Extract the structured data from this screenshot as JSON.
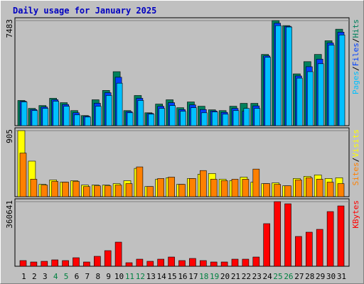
{
  "chart_data": [
    {
      "type": "bar",
      "title": "Daily usage for January 2025",
      "legend_separator": "/",
      "ylim": [
        0,
        7483
      ],
      "yticks": [
        7483
      ],
      "series": [
        {
          "name": "Hits",
          "color": "#00805c",
          "values": [
            1795,
            1230,
            1435,
            1950,
            1640,
            1075,
            720,
            1845,
            2510,
            3845,
            1075,
            2150,
            920,
            1540,
            1845,
            1280,
            1690,
            1385,
            1130,
            1075,
            1385,
            1590,
            1590,
            5075,
            7483,
            7125,
            3690,
            4560,
            5075,
            6050,
            6870
          ]
        },
        {
          "name": "Files",
          "color": "#0040ff",
          "values": [
            1740,
            1150,
            1330,
            1850,
            1510,
            920,
            670,
            1600,
            2350,
            3450,
            1000,
            1950,
            870,
            1380,
            1640,
            1150,
            1480,
            1150,
            1050,
            950,
            1230,
            1030,
            1410,
            4970,
            7300,
            7075,
            3540,
            4200,
            4740,
            5890,
            6660
          ]
        },
        {
          "name": "Pages",
          "color": "#00c0ff",
          "values": [
            1690,
            1075,
            1230,
            1740,
            1385,
            770,
            615,
            1385,
            2150,
            3025,
            920,
            1795,
            820,
            1230,
            1435,
            1025,
            1280,
            920,
            975,
            820,
            1075,
            1230,
            1230,
            4870,
            7125,
            7025,
            3385,
            3845,
            4410,
            5740,
            6460
          ]
        }
      ]
    },
    {
      "type": "bar",
      "legend_separator": "/",
      "ylim": [
        0,
        905
      ],
      "yticks": [
        905
      ],
      "series": [
        {
          "name": "Visits",
          "color": "#ffff00",
          "values": [
            905,
            487,
            169,
            229,
            199,
            219,
            159,
            159,
            159,
            179,
            219,
            388,
            139,
            239,
            259,
            169,
            249,
            308,
            318,
            239,
            219,
            268,
            199,
            179,
            189,
            149,
            249,
            278,
            298,
            249,
            259
          ]
        },
        {
          "name": "Sites",
          "color": "#ff8000",
          "values": [
            597,
            239,
            159,
            209,
            199,
            209,
            139,
            149,
            149,
            159,
            179,
            408,
            139,
            249,
            268,
            169,
            249,
            358,
            239,
            219,
            239,
            239,
            378,
            179,
            169,
            149,
            229,
            259,
            239,
            199,
            179
          ]
        }
      ]
    },
    {
      "type": "bar",
      "ylim": [
        0,
        360641
      ],
      "yticks": [
        360641
      ],
      "categories": [
        "1",
        "2",
        "3",
        "4",
        "5",
        "6",
        "7",
        "8",
        "9",
        "10",
        "11",
        "12",
        "13",
        "14",
        "15",
        "16",
        "17",
        "18",
        "19",
        "20",
        "21",
        "22",
        "23",
        "24",
        "25",
        "26",
        "27",
        "28",
        "29",
        "30",
        "31"
      ],
      "category_colors": [
        "#000000",
        "#000000",
        "#000000",
        "#008040",
        "#008040",
        "#000000",
        "#000000",
        "#000000",
        "#000000",
        "#000000",
        "#008040",
        "#008040",
        "#000000",
        "#000000",
        "#000000",
        "#000000",
        "#000000",
        "#008040",
        "#008040",
        "#000000",
        "#000000",
        "#000000",
        "#000000",
        "#000000",
        "#008040",
        "#008040",
        "#000000",
        "#000000",
        "#000000",
        "#000000",
        "#000000"
      ],
      "series": [
        {
          "name": "KBytes",
          "color": "#ff0000",
          "values": [
            31700,
            23800,
            27700,
            35700,
            31700,
            47600,
            23800,
            55500,
            87200,
            134700,
            19800,
            39600,
            27700,
            39600,
            51500,
            31700,
            43600,
            31700,
            23800,
            23800,
            39600,
            39600,
            51500,
            237800,
            360641,
            348700,
            166400,
            190200,
            206000,
            305100,
            336800
          ]
        }
      ]
    }
  ]
}
